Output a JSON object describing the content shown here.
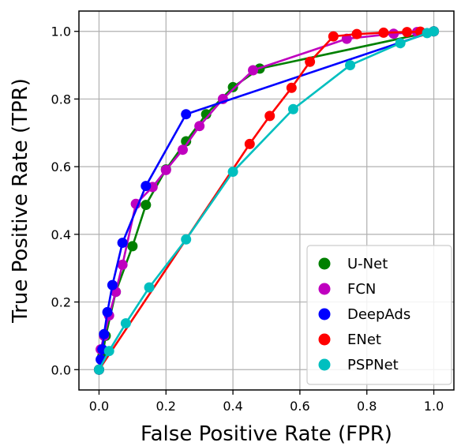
{
  "chart_data": {
    "type": "line",
    "title": "",
    "xlabel": "False Positive Rate (FPR)",
    "ylabel": "True Positive Rate (TPR)",
    "xlim": [
      -0.06,
      1.06
    ],
    "ylim": [
      -0.06,
      1.06
    ],
    "xticks": [
      0.0,
      0.2,
      0.4,
      0.6,
      0.8,
      1.0
    ],
    "yticks": [
      0.0,
      0.2,
      0.4,
      0.6,
      0.8,
      1.0
    ],
    "xtick_labels": [
      "0.0",
      "0.2",
      "0.4",
      "0.6",
      "0.8",
      "1.0"
    ],
    "ytick_labels": [
      "0.0",
      "0.2",
      "0.4",
      "0.6",
      "0.8",
      "1.0"
    ],
    "grid": true,
    "legend_position": "bottom-right",
    "series": [
      {
        "name": "U-Net",
        "color": "#008000",
        "x": [
          0.0,
          0.01,
          0.02,
          0.05,
          0.1,
          0.14,
          0.2,
          0.26,
          0.32,
          0.4,
          0.48,
          1.0
        ],
        "y": [
          0.0,
          0.04,
          0.1,
          0.23,
          0.365,
          0.487,
          0.592,
          0.675,
          0.755,
          0.835,
          0.89,
          1.0
        ]
      },
      {
        "name": "FCN",
        "color": "#bf00bf",
        "x": [
          0.0,
          0.005,
          0.015,
          0.03,
          0.05,
          0.07,
          0.11,
          0.16,
          0.2,
          0.25,
          0.3,
          0.37,
          0.46,
          0.74,
          0.88,
          0.95,
          1.0
        ],
        "y": [
          0.0,
          0.06,
          0.1,
          0.16,
          0.23,
          0.31,
          0.49,
          0.54,
          0.59,
          0.65,
          0.72,
          0.8,
          0.885,
          0.978,
          0.993,
          0.998,
          1.0
        ]
      },
      {
        "name": "DeepAds",
        "color": "#0000ff",
        "x": [
          0.0,
          0.005,
          0.01,
          0.015,
          0.025,
          0.04,
          0.07,
          0.14,
          0.26,
          1.0
        ],
        "y": [
          0.0,
          0.03,
          0.06,
          0.105,
          0.17,
          0.25,
          0.375,
          0.543,
          0.755,
          1.0
        ]
      },
      {
        "name": "ENet",
        "color": "#ff0000",
        "x": [
          0.0,
          0.45,
          0.51,
          0.575,
          0.63,
          0.7,
          0.77,
          0.85,
          0.92,
          0.96,
          1.0
        ],
        "y": [
          0.0,
          0.667,
          0.75,
          0.833,
          0.91,
          0.985,
          0.992,
          0.996,
          0.998,
          0.999,
          1.0
        ]
      },
      {
        "name": "PSPNet",
        "color": "#00bfbf",
        "x": [
          0.0,
          0.03,
          0.08,
          0.15,
          0.26,
          0.4,
          0.58,
          0.75,
          0.9,
          0.98,
          1.0
        ],
        "y": [
          0.0,
          0.055,
          0.137,
          0.243,
          0.385,
          0.585,
          0.77,
          0.9,
          0.965,
          0.995,
          1.0
        ]
      }
    ]
  }
}
